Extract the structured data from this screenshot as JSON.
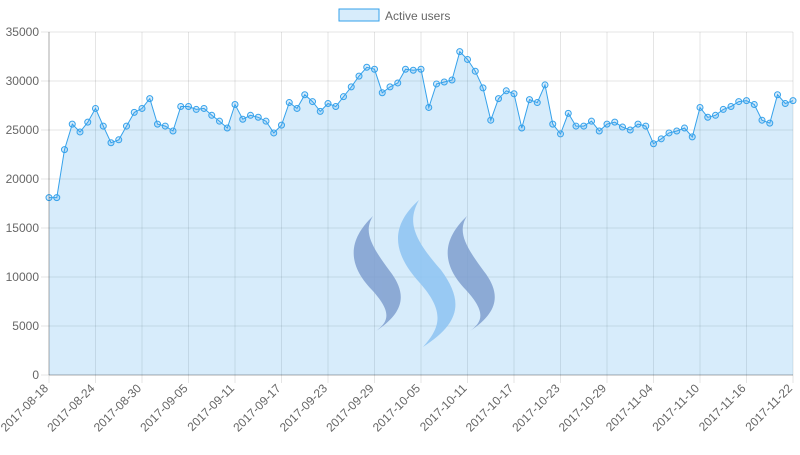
{
  "chart_data": {
    "type": "line",
    "categories": [
      "2017-08-18",
      null,
      null,
      null,
      null,
      null,
      "2017-08-24",
      null,
      null,
      null,
      null,
      null,
      "2017-08-30",
      null,
      null,
      null,
      null,
      null,
      "2017-09-05",
      null,
      null,
      null,
      null,
      null,
      "2017-09-11",
      null,
      null,
      null,
      null,
      null,
      "2017-09-17",
      null,
      null,
      null,
      null,
      null,
      "2017-09-23",
      null,
      null,
      null,
      null,
      null,
      "2017-09-29",
      null,
      null,
      null,
      null,
      null,
      "2017-10-05",
      null,
      null,
      null,
      null,
      null,
      "2017-10-11",
      null,
      null,
      null,
      null,
      null,
      "2017-10-17",
      null,
      null,
      null,
      null,
      null,
      "2017-10-23",
      null,
      null,
      null,
      null,
      null,
      "2017-10-29",
      null,
      null,
      null,
      null,
      null,
      "2017-11-04",
      null,
      null,
      null,
      null,
      null,
      "2017-11-10",
      null,
      null,
      null,
      null,
      null,
      "2017-11-16",
      null,
      null,
      null,
      null,
      null,
      "2017-11-22"
    ],
    "series": [
      {
        "name": "Active users",
        "color": "#36a2eb",
        "fill": "rgba(54,162,235,0.2)",
        "values": [
          18100,
          18100,
          23000,
          25600,
          24800,
          25800,
          27200,
          25400,
          23700,
          24000,
          25400,
          26800,
          27200,
          28200,
          25600,
          25400,
          24900,
          27400,
          27400,
          27100,
          27200,
          26500,
          25900,
          25200,
          27600,
          26100,
          26500,
          26300,
          25900,
          24700,
          25500,
          27800,
          27200,
          28600,
          27900,
          26900,
          27700,
          27400,
          28400,
          29400,
          30500,
          31400,
          31200,
          28800,
          29400,
          29800,
          31200,
          31100,
          31200,
          27300,
          29700,
          29900,
          30100,
          33000,
          32200,
          31000,
          29300,
          26000,
          28200,
          29000,
          28700,
          25200,
          28100,
          27800,
          29600,
          25600,
          24600,
          26700,
          25400,
          25400,
          25900,
          24900,
          25600,
          25800,
          25300,
          25000,
          25600,
          25400,
          23600,
          24100,
          24700,
          24900,
          25200,
          24300,
          27300,
          26300,
          26500,
          27100,
          27400,
          27900,
          28000,
          27600,
          26000,
          25700,
          28600,
          27700,
          28000
        ]
      }
    ],
    "ylim": [
      0,
      35000
    ],
    "yticks": [
      0,
      5000,
      10000,
      15000,
      20000,
      25000,
      30000,
      35000
    ],
    "grid": true,
    "legend": "top"
  }
}
